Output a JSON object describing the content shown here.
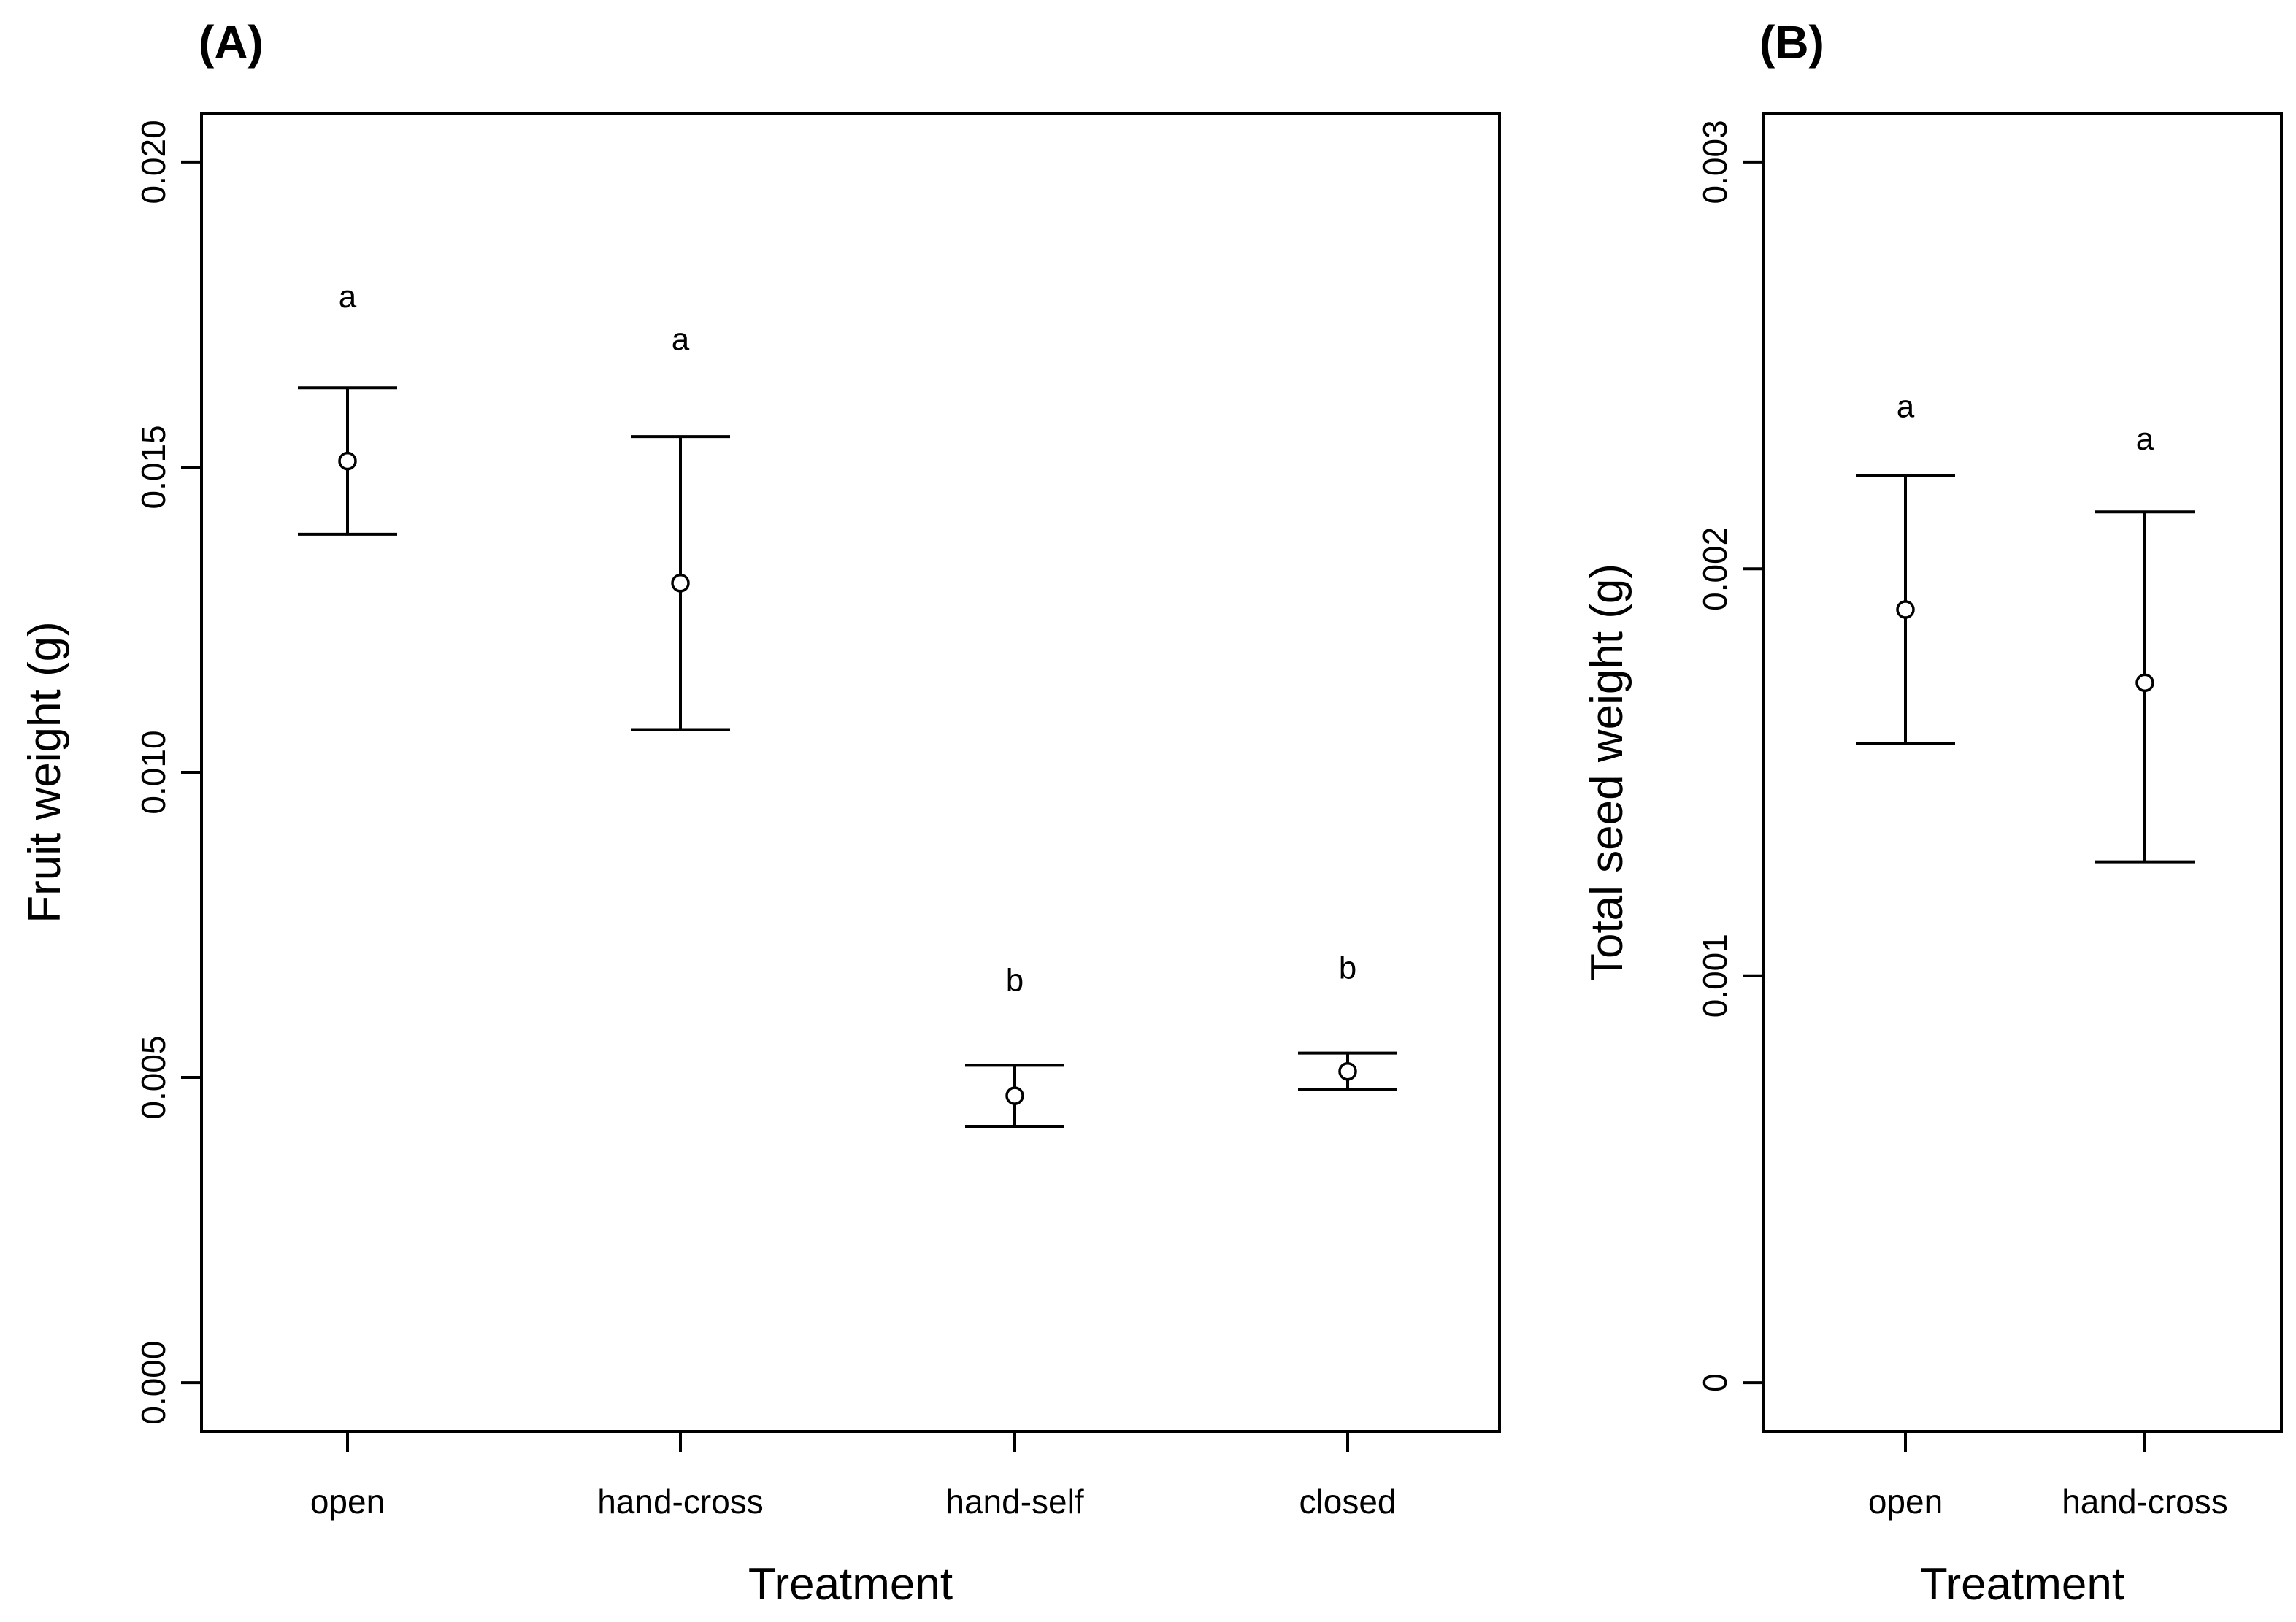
{
  "chart_data": [
    {
      "panel": "(A)",
      "type": "scatter",
      "subtype": "mean with error bars",
      "xlabel": "Treatment",
      "ylabel": "Fruit weight (g)",
      "categories": [
        "open",
        "hand-cross",
        "hand-self",
        "closed"
      ],
      "values": [
        0.0151,
        0.0131,
        0.0047,
        0.0051
      ],
      "lower": [
        0.0139,
        0.0107,
        0.0042,
        0.0048
      ],
      "upper": [
        0.0163,
        0.0155,
        0.0052,
        0.0054
      ],
      "letters": [
        "a",
        "a",
        "b",
        "b"
      ],
      "letter_y": [
        0.0178,
        0.0171,
        0.0066,
        0.0068
      ],
      "yticks": [
        0.0,
        0.005,
        0.01,
        0.015,
        0.02
      ],
      "ytick_labels": [
        "0.000",
        "0.005",
        "0.010",
        "0.015",
        "0.020"
      ],
      "ylim": [
        -0.0008,
        0.0208
      ],
      "grid": false
    },
    {
      "panel": "(B)",
      "type": "scatter",
      "subtype": "mean with error bars",
      "xlabel": "Treatment",
      "ylabel": "Total seed weight (g)",
      "categories": [
        "open",
        "hand-cross"
      ],
      "values": [
        0.0019,
        0.00172
      ],
      "lower": [
        0.00157,
        0.00128
      ],
      "upper": [
        0.00223,
        0.00214
      ],
      "letters": [
        "a",
        "a"
      ],
      "letter_y": [
        0.0024,
        0.00232
      ],
      "yticks": [
        0,
        0.001,
        0.002,
        0.003
      ],
      "ytick_labels": [
        "0",
        "0.001",
        "0.002",
        "0.003"
      ],
      "ylim": [
        -0.00012,
        0.00312
      ],
      "grid": false
    }
  ]
}
